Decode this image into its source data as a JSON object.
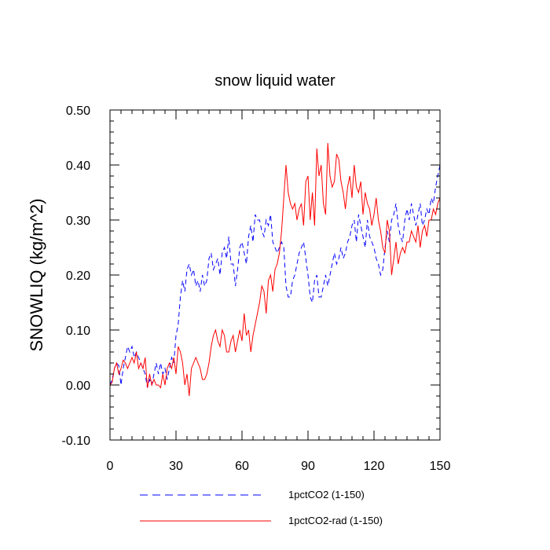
{
  "chart_data": {
    "type": "line",
    "title": "snow liquid water",
    "ylabel": "SNOWLIQ  (kg/m^2)",
    "xlabel": "",
    "xlim": [
      0,
      150
    ],
    "ylim": [
      -0.1,
      0.5
    ],
    "xticks": [
      0,
      30,
      60,
      90,
      120,
      150
    ],
    "xtick_labels": [
      "0",
      "30",
      "60",
      "90",
      "120",
      "150"
    ],
    "yticks": [
      -0.1,
      0.0,
      0.1,
      0.2,
      0.3,
      0.4,
      0.5
    ],
    "ytick_labels": [
      "-0.10",
      "0.00",
      "0.10",
      "0.20",
      "0.30",
      "0.40",
      "0.50"
    ],
    "grid": false,
    "legend_position": "bottom",
    "series": [
      {
        "name": "1pctCO2 (1-150)",
        "color": "#0000ff",
        "dash": "dashed",
        "y": [
          0.0,
          0.01,
          0.03,
          0.04,
          0.035,
          0.0,
          0.03,
          0.05,
          0.07,
          0.06,
          0.07,
          0.05,
          0.06,
          0.05,
          0.04,
          0.03,
          0.02,
          -0.005,
          0.01,
          0.0,
          0.02,
          0.04,
          0.02,
          0.04,
          0.02,
          0.03,
          0.01,
          0.03,
          0.05,
          0.04,
          0.09,
          0.11,
          0.16,
          0.19,
          0.17,
          0.21,
          0.22,
          0.2,
          0.21,
          0.18,
          0.19,
          0.17,
          0.2,
          0.18,
          0.19,
          0.23,
          0.24,
          0.21,
          0.22,
          0.23,
          0.2,
          0.24,
          0.25,
          0.23,
          0.27,
          0.22,
          0.22,
          0.18,
          0.21,
          0.25,
          0.26,
          0.24,
          0.22,
          0.27,
          0.29,
          0.26,
          0.31,
          0.3,
          0.3,
          0.28,
          0.27,
          0.3,
          0.29,
          0.31,
          0.26,
          0.25,
          0.24,
          0.25,
          0.26,
          0.25,
          0.18,
          0.16,
          0.16,
          0.19,
          0.2,
          0.22,
          0.24,
          0.25,
          0.26,
          0.23,
          0.2,
          0.16,
          0.15,
          0.19,
          0.2,
          0.16,
          0.16,
          0.18,
          0.2,
          0.18,
          0.2,
          0.22,
          0.24,
          0.22,
          0.23,
          0.25,
          0.23,
          0.24,
          0.26,
          0.27,
          0.29,
          0.3,
          0.26,
          0.31,
          0.29,
          0.27,
          0.25,
          0.3,
          0.27,
          0.26,
          0.25,
          0.23,
          0.22,
          0.2,
          0.21,
          0.25,
          0.28,
          0.26,
          0.3,
          0.31,
          0.33,
          0.29,
          0.27,
          0.26,
          0.3,
          0.32,
          0.3,
          0.33,
          0.31,
          0.29,
          0.31,
          0.33,
          0.29,
          0.3,
          0.32,
          0.31,
          0.34,
          0.33,
          0.36,
          0.38,
          0.4
        ]
      },
      {
        "name": "1pctCO2-rad (1-150)",
        "color": "#ff0000",
        "dash": "solid",
        "y": [
          0.0,
          0.005,
          0.03,
          0.04,
          0.02,
          0.03,
          0.045,
          0.04,
          0.03,
          0.04,
          0.05,
          0.04,
          0.06,
          0.03,
          0.04,
          0.03,
          0.05,
          -0.005,
          0.02,
          0.0,
          0.01,
          0.0,
          0.0,
          -0.005,
          0.02,
          0.0,
          0.03,
          0.04,
          0.03,
          0.05,
          0.02,
          0.07,
          0.06,
          0.04,
          0.0,
          0.02,
          -0.02,
          0.03,
          0.04,
          0.05,
          0.04,
          0.03,
          0.01,
          0.01,
          0.02,
          0.04,
          0.07,
          0.09,
          0.1,
          0.08,
          0.07,
          0.1,
          0.09,
          0.06,
          0.06,
          0.08,
          0.09,
          0.06,
          0.08,
          0.1,
          0.08,
          0.13,
          0.09,
          0.1,
          0.06,
          0.09,
          0.11,
          0.13,
          0.15,
          0.18,
          0.17,
          0.13,
          0.19,
          0.2,
          0.17,
          0.21,
          0.22,
          0.24,
          0.28,
          0.34,
          0.4,
          0.35,
          0.33,
          0.32,
          0.33,
          0.3,
          0.32,
          0.33,
          0.29,
          0.37,
          0.38,
          0.3,
          0.35,
          0.29,
          0.43,
          0.38,
          0.4,
          0.33,
          0.31,
          0.44,
          0.38,
          0.36,
          0.37,
          0.42,
          0.41,
          0.37,
          0.35,
          0.32,
          0.36,
          0.38,
          0.34,
          0.4,
          0.36,
          0.35,
          0.37,
          0.31,
          0.35,
          0.33,
          0.32,
          0.29,
          0.31,
          0.34,
          0.3,
          0.28,
          0.25,
          0.24,
          0.3,
          0.28,
          0.2,
          0.23,
          0.26,
          0.22,
          0.24,
          0.25,
          0.24,
          0.26,
          0.26,
          0.28,
          0.27,
          0.26,
          0.29,
          0.25,
          0.28,
          0.29,
          0.27,
          0.3,
          0.3,
          0.32,
          0.31,
          0.33,
          0.34
        ]
      }
    ]
  }
}
